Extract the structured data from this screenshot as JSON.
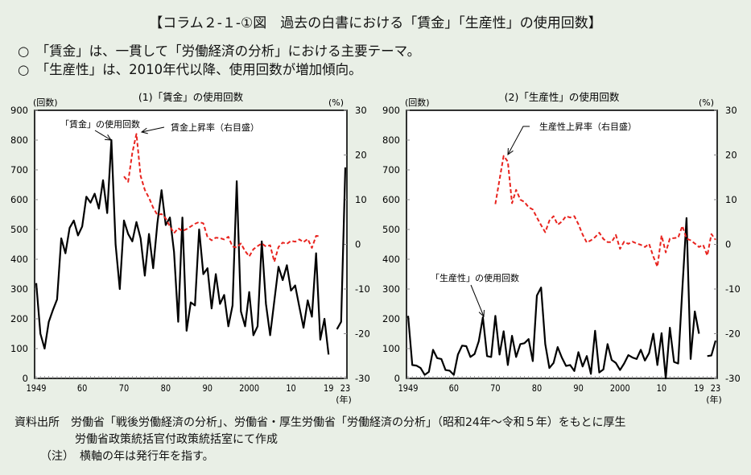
{
  "header": {
    "title": "【コラム２-１-①図　過去の白書における「賃金」「生産性」の使用回数】",
    "bullets": [
      "○　「賃金」は、一貫して「労働経済の分析」における主要テーマ。",
      "○　「生産性」は、2010年代以降、使用回数が増加傾向。"
    ]
  },
  "footer": {
    "source_line1": "資料出所　労働省「戦後労働経済の分析」、労働省・厚生労働省「労働経済の分析」（昭和24年～令和５年）をもとに厚生",
    "source_line2": "労働省政策統括官付政策統括室にて作成",
    "note": "（注）　横軸の年は発行年を指す。"
  },
  "chart_data": [
    {
      "type": "line",
      "title": "(1)「賃金」の使用回数",
      "ylabel_left": "(回数)",
      "ylabel_right": "(%)",
      "xlabel": "(年)",
      "x_ticks": [
        "1949",
        "60",
        "70",
        "80",
        "90",
        "2000",
        "10",
        "19",
        "23"
      ],
      "x_tick_years": [
        1949,
        1960,
        1970,
        1980,
        1990,
        2000,
        2010,
        2019,
        2023
      ],
      "ylim_left": [
        0,
        900
      ],
      "yticks_left": [
        0,
        100,
        200,
        300,
        400,
        500,
        600,
        700,
        800,
        900
      ],
      "ylim_right": [
        -30,
        30
      ],
      "yticks_right": [
        -30,
        -20,
        -10,
        0,
        10,
        20,
        30
      ],
      "grid": false,
      "annotations": [
        "「賃金」の使用回数",
        "賃金上昇率（右目盛）"
      ],
      "series": [
        {
          "name": "「賃金」の使用回数",
          "axis": "left",
          "style": "solid",
          "color": "#000000",
          "x_start": 1949,
          "values": [
            320,
            150,
            100,
            190,
            230,
            265,
            470,
            420,
            505,
            530,
            480,
            510,
            610,
            590,
            620,
            570,
            665,
            555,
            800,
            450,
            300,
            530,
            485,
            460,
            525,
            470,
            345,
            485,
            370,
            520,
            632,
            515,
            540,
            425,
            190,
            540,
            160,
            255,
            245,
            500,
            350,
            370,
            235,
            350,
            250,
            280,
            175,
            245,
            662,
            225,
            175,
            290,
            145,
            175,
            460,
            250,
            145,
            260,
            375,
            330,
            380,
            295,
            312,
            240,
            170,
            262,
            207,
            420,
            130,
            200,
            80,
            null,
            165,
            190,
            708
          ]
        },
        {
          "name": "賃金上昇率（右目盛）",
          "axis": "right",
          "style": "dashed",
          "color": "#e8231e",
          "x_start": 1970,
          "values": [
            15.2,
            14.0,
            20.5,
            24.7,
            15.3,
            12.2,
            10.4,
            8.2,
            6.6,
            6.8,
            5.8,
            4.0,
            2.5,
            3.6,
            3.0,
            3.4,
            4.0,
            4.6,
            5.0,
            4.7,
            1.6,
            0.9,
            1.5,
            1.4,
            1.1,
            1.7,
            -0.5,
            -0.7,
            0.2,
            -1.5,
            -2.7,
            -1.1,
            -0.4,
            0.2,
            -0.5,
            -0.2,
            -3.9,
            -0.6,
            0.4,
            0.1,
            0.8,
            0.6,
            1.1,
            0.5,
            1.2,
            -0.8,
            1.9,
            1.8
          ]
        }
      ]
    },
    {
      "type": "line",
      "title": "(2)「生産性」の使用回数",
      "ylabel_left": "(回数)",
      "ylabel_right": "(%)",
      "xlabel": "(年)",
      "x_ticks": [
        "1949",
        "60",
        "70",
        "80",
        "90",
        "2000",
        "10",
        "19",
        "23"
      ],
      "x_tick_years": [
        1949,
        1960,
        1970,
        1980,
        1990,
        2000,
        2010,
        2019,
        2023
      ],
      "ylim_left": [
        0,
        900
      ],
      "yticks_left": [
        0,
        100,
        200,
        300,
        400,
        500,
        600,
        700,
        800,
        900
      ],
      "ylim_right": [
        -30,
        30
      ],
      "yticks_right": [
        -30,
        -20,
        -10,
        0,
        10,
        20,
        30
      ],
      "grid": false,
      "annotations": [
        "生産性上昇率（右目盛）",
        "「生産性」の使用回数"
      ],
      "series": [
        {
          "name": "「生産性」の使用回数",
          "axis": "left",
          "style": "solid",
          "color": "#000000",
          "x_start": 1949,
          "values": [
            210,
            45,
            43,
            35,
            12,
            22,
            96,
            68,
            65,
            28,
            26,
            12,
            80,
            110,
            108,
            72,
            82,
            125,
            205,
            75,
            72,
            210,
            80,
            158,
            45,
            143,
            72,
            115,
            118,
            132,
            58,
            278,
            305,
            115,
            35,
            52,
            105,
            70,
            42,
            45,
            25,
            88,
            40,
            75,
            15,
            160,
            20,
            30,
            115,
            62,
            52,
            28,
            50,
            78,
            70,
            65,
            96,
            60,
            85,
            150,
            45,
            152,
            0,
            170,
            55,
            50,
            300,
            538,
            65,
            225,
            150,
            null,
            75,
            77,
            127
          ]
        },
        {
          "name": "生産性上昇率（右目盛）",
          "axis": "right",
          "style": "dashed",
          "color": "#e8231e",
          "x_start": 1970,
          "values": [
            9.0,
            14.5,
            19.8,
            18.5,
            9.2,
            12.2,
            10.0,
            9.5,
            8.3,
            7.8,
            6.0,
            4.3,
            2.7,
            5.3,
            6.3,
            4.4,
            5.1,
            6.3,
            6.0,
            6.3,
            4.5,
            2.2,
            0.4,
            0.9,
            1.6,
            2.6,
            1.2,
            0.5,
            0.5,
            2.1,
            -1.0,
            0.6,
            0.1,
            0.6,
            0.2,
            -0.1,
            -0.6,
            0.1,
            -2.7,
            -5.0,
            2.0,
            -1.8,
            1.3,
            1.4,
            1.5,
            4.1,
            1.3,
            0.9,
            0.2,
            -0.6,
            -0.1,
            -2.5,
            2.3,
            1.0
          ]
        }
      ]
    }
  ]
}
